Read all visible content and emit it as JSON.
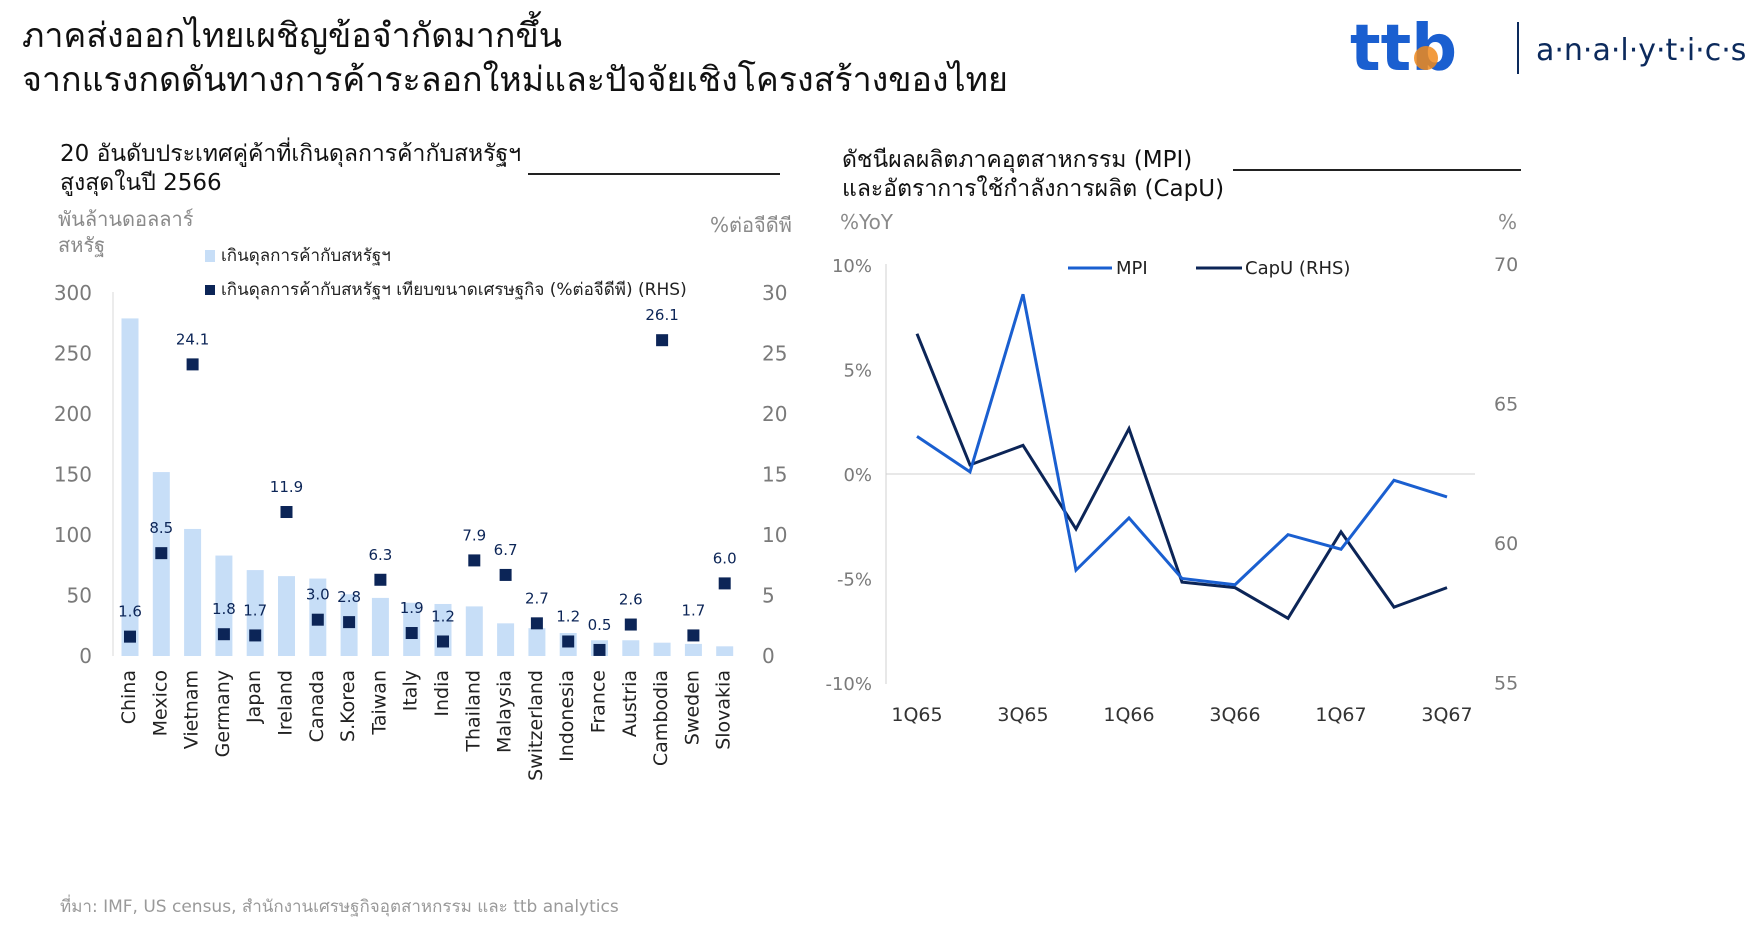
{
  "headline": {
    "line1": "ภาคส่งออกไทยเผชิญข้อจำกัดมากขึ้น",
    "line2": "จากแรงกดดันทางการค้าระลอกใหม่และปัจจัยเชิงโครงสร้างของไทย"
  },
  "brand": {
    "logo_text": "ttb",
    "wordmark": "a·n·a·l·y·t·i·c·s",
    "colors": {
      "primary": "#1a5fd0",
      "accent": "#f08a1c",
      "text": "#0c2a5c"
    }
  },
  "left_panel": {
    "title_line1": "20 อันดับประเทศคู่ค้าที่เกินดุลการค้ากับสหรัฐฯ",
    "title_line2": "สูงสุดในปี 2566",
    "y_left_unit_line1": "พันล้านดอลลาร์",
    "y_left_unit_line2": "สหรัฐ",
    "y_right_unit": "%ต่อจีดีพี",
    "legend_bar": "เกินดุลการค้ากับสหรัฐฯ",
    "legend_marker": "เกินดุลการค้ากับสหรัฐฯ เทียบขนาดเศรษฐกิจ (%ต่อจีดีพี) (RHS)"
  },
  "right_panel": {
    "title_line1": "ดัชนีผลผลิตภาคอุตสาหกรรม (MPI)",
    "title_line2": "และอัตราการใช้กำลังการผลิต (CapU)",
    "y_left_unit": "%YoY",
    "y_right_unit": "%"
  },
  "source": "ที่มา: IMF, US census, สำนักงานเศรษฐกิจอุตสาหกรรม และ ttb analytics",
  "colors": {
    "bar": "#c7def7",
    "marker": "#0c2557",
    "mpi": "#1a5fd0",
    "capu": "#0c2557",
    "axis_text": "#7a7a7a"
  },
  "chart_data": [
    {
      "type": "bar",
      "categories": [
        "China",
        "Mexico",
        "Vietnam",
        "Germany",
        "Japan",
        "Ireland",
        "Canada",
        "S.Korea",
        "Taiwan",
        "Italy",
        "India",
        "Thailand",
        "Malaysia",
        "Switzerland",
        "Indonesia",
        "France",
        "Austria",
        "Cambodia",
        "Sweden",
        "Slovakia"
      ],
      "series": [
        {
          "name": "เกินดุลการค้ากับสหรัฐฯ",
          "axis": "left",
          "values": [
            279,
            152,
            105,
            83,
            71,
            66,
            64,
            51,
            48,
            44,
            43,
            41,
            27,
            23,
            19,
            13,
            13,
            11,
            10,
            8
          ]
        },
        {
          "name": "เกินดุลการค้ากับสหรัฐฯ เทียบขนาดเศรษฐกิจ (%ต่อจีดีพี) (RHS)",
          "axis": "right",
          "marker": "square",
          "values": [
            1.6,
            8.5,
            24.1,
            1.8,
            1.7,
            11.9,
            3.0,
            2.8,
            6.3,
            1.9,
            1.2,
            7.9,
            6.7,
            2.7,
            1.2,
            0.5,
            2.6,
            26.1,
            1.7,
            6.0
          ],
          "labels": [
            "1.6",
            "8.5",
            "24.1",
            "1.8",
            "1.7",
            "11.9",
            "3.0",
            "2.8",
            "6.3",
            "1.9",
            "1.2",
            "7.9",
            "6.7",
            "2.7",
            "1.2",
            "0.5",
            "2.6",
            "26.1",
            "1.7",
            "6.0"
          ]
        }
      ],
      "y_left": {
        "ticks": [
          "0",
          "50",
          "100",
          "150",
          "200",
          "250",
          "300"
        ],
        "lim": [
          0,
          300
        ]
      },
      "y_right": {
        "ticks": [
          "0",
          "5",
          "10",
          "15",
          "20",
          "25",
          "30"
        ],
        "lim": [
          0,
          30
        ]
      },
      "legend_placement": "top-center"
    },
    {
      "type": "line",
      "x_ticks": [
        "1Q65",
        "3Q65",
        "1Q66",
        "3Q66",
        "1Q67",
        "3Q67"
      ],
      "x_ticks_at": [
        0,
        2,
        4,
        6,
        8,
        10
      ],
      "x": [
        "1Q65",
        "2Q65",
        "3Q65",
        "4Q65",
        "1Q66",
        "2Q66",
        "3Q66",
        "4Q66",
        "1Q67",
        "2Q67",
        "3Q67"
      ],
      "series": [
        {
          "name": "MPI",
          "axis": "left",
          "values": [
            1.8,
            0.1,
            8.6,
            -4.6,
            -2.1,
            -5.0,
            -5.3,
            -2.9,
            -3.6,
            -0.3,
            -1.1
          ]
        },
        {
          "name": "CapU (RHS)",
          "axis": "right",
          "values": [
            67.5,
            62.8,
            63.5,
            60.5,
            64.1,
            58.6,
            58.4,
            57.3,
            60.4,
            57.7,
            58.4
          ]
        }
      ],
      "y_left": {
        "ticks": [
          "10%",
          "5%",
          "0%",
          "-5%",
          "-10%"
        ],
        "lim": [
          -10,
          10
        ]
      },
      "y_right": {
        "ticks": [
          "70",
          "65",
          "60",
          "55"
        ],
        "lim": [
          55,
          70
        ]
      },
      "zero_line": true,
      "legend_placement": "top-center"
    }
  ]
}
